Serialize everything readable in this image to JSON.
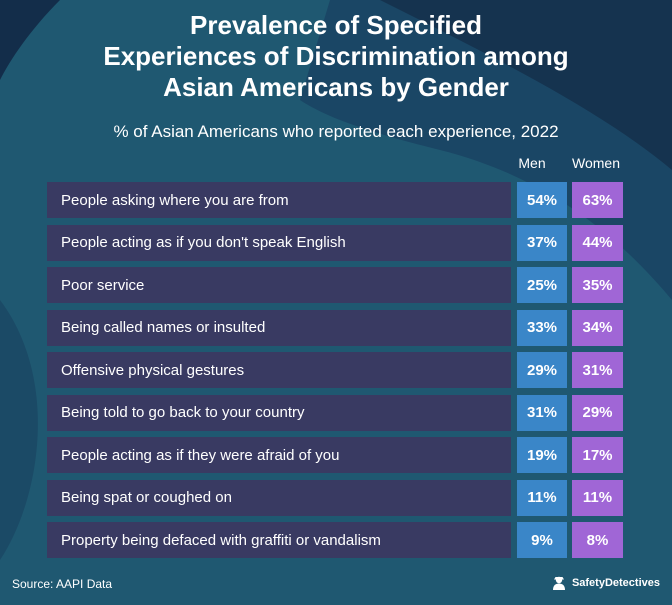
{
  "colors": {
    "background": "#1f5871",
    "row_label_bg": "#393a62",
    "men": "#3a86c8",
    "women": "#a066d6"
  },
  "header": {
    "title_lines": [
      "Prevalence of Specified",
      "Experiences of Discrimination among",
      "Asian Americans by Gender"
    ],
    "subtitle": "% of Asian Americans who reported each experience, 2022"
  },
  "columns": {
    "men": "Men",
    "women": "Women"
  },
  "footer": {
    "source": "Source: AAPI Data",
    "brand": "SafetyDetectives",
    "brand_icon": "safetydetectives-logo-icon"
  },
  "chart_data": {
    "type": "table",
    "title": "Prevalence of Specified Experiences of Discrimination among Asian Americans by Gender",
    "subtitle": "% of Asian Americans who reported each experience, 2022",
    "columns": [
      "Men",
      "Women"
    ],
    "rows": [
      {
        "label": "People asking where you are from",
        "men": 54,
        "women": 63,
        "men_text": "54%",
        "women_text": "63%"
      },
      {
        "label": "People acting as if you don't speak English",
        "men": 37,
        "women": 44,
        "men_text": "37%",
        "women_text": "44%"
      },
      {
        "label": "Poor service",
        "men": 25,
        "women": 35,
        "men_text": "25%",
        "women_text": "35%"
      },
      {
        "label": "Being called names or insulted",
        "men": 33,
        "women": 34,
        "men_text": "33%",
        "women_text": "34%"
      },
      {
        "label": "Offensive physical gestures",
        "men": 29,
        "women": 31,
        "men_text": "29%",
        "women_text": "31%"
      },
      {
        "label": "Being told to go back to your country",
        "men": 31,
        "women": 29,
        "men_text": "31%",
        "women_text": "29%"
      },
      {
        "label": "People acting as if they were afraid of you",
        "men": 19,
        "women": 17,
        "men_text": "19%",
        "women_text": "17%"
      },
      {
        "label": "Being spat or coughed on",
        "men": 11,
        "women": 11,
        "men_text": "11%",
        "women_text": "11%"
      },
      {
        "label": "Property being defaced with graffiti or vandalism",
        "men": 9,
        "women": 8,
        "men_text": "9%",
        "women_text": "8%"
      }
    ],
    "source": "Source: AAPI Data"
  }
}
